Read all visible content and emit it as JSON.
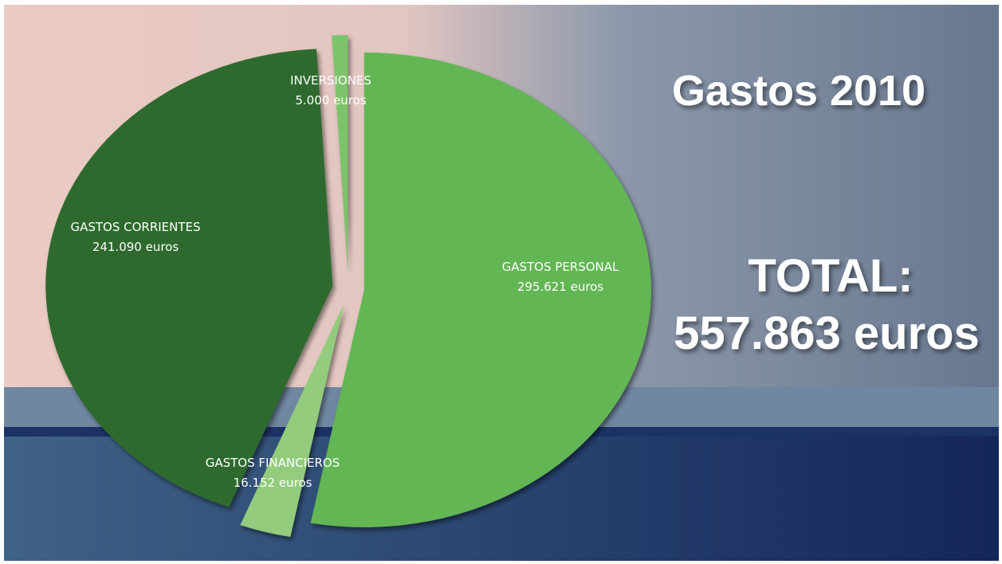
{
  "chart_data": {
    "type": "pie",
    "title": "Gastos 2010",
    "total_label": "TOTAL:",
    "total": "557.863 euros",
    "categories": [
      "GASTOS PERSONAL",
      "GASTOS FINANCIEROS",
      "GASTOS CORRIENTES",
      "INVERSIONES"
    ],
    "values": [
      295621,
      16152,
      241090,
      5000
    ],
    "value_labels": [
      "295.621 euros",
      "16.152 euros",
      "241.090 euros",
      "5.000 euros"
    ],
    "colors": [
      "#62b653",
      "#92cc7c",
      "#2f6a2e",
      "#7cc46a"
    ]
  }
}
